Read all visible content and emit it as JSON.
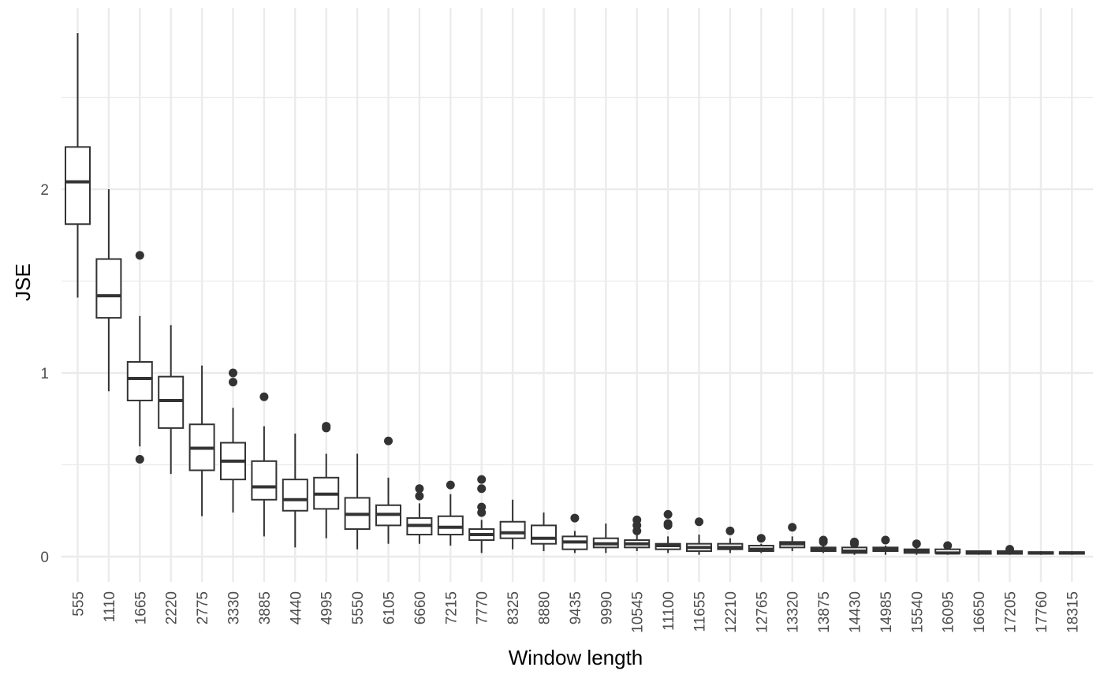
{
  "chart_data": {
    "type": "boxplot",
    "xlabel": "Window length",
    "ylabel": "JSE",
    "ylim": [
      -0.14,
      2.9
    ],
    "y_ticks": [
      0,
      1,
      2
    ],
    "grid": true,
    "theme": "minimal",
    "box_color": "#333333",
    "grid_color": "#ebebeb",
    "categories": [
      "555",
      "1110",
      "1665",
      "2220",
      "2775",
      "3330",
      "3885",
      "4440",
      "4995",
      "5550",
      "6105",
      "6660",
      "7215",
      "7770",
      "8325",
      "8880",
      "9435",
      "9990",
      "10545",
      "11100",
      "11655",
      "12210",
      "12765",
      "13320",
      "13875",
      "14430",
      "14985",
      "15540",
      "16095",
      "16650",
      "17205",
      "17760",
      "18315"
    ],
    "boxes": [
      {
        "whisker_low": 1.41,
        "q1": 1.81,
        "median": 2.04,
        "q3": 2.23,
        "whisker_high": 2.85,
        "outliers": []
      },
      {
        "whisker_low": 0.9,
        "q1": 1.3,
        "median": 1.42,
        "q3": 1.62,
        "whisker_high": 2.0,
        "outliers": []
      },
      {
        "whisker_low": 0.6,
        "q1": 0.85,
        "median": 0.97,
        "q3": 1.06,
        "whisker_high": 1.31,
        "outliers": [
          1.64,
          0.53
        ]
      },
      {
        "whisker_low": 0.45,
        "q1": 0.7,
        "median": 0.85,
        "q3": 0.98,
        "whisker_high": 1.26,
        "outliers": []
      },
      {
        "whisker_low": 0.22,
        "q1": 0.47,
        "median": 0.59,
        "q3": 0.72,
        "whisker_high": 1.04,
        "outliers": []
      },
      {
        "whisker_low": 0.24,
        "q1": 0.42,
        "median": 0.52,
        "q3": 0.62,
        "whisker_high": 0.81,
        "outliers": [
          1.0,
          0.95
        ]
      },
      {
        "whisker_low": 0.11,
        "q1": 0.31,
        "median": 0.38,
        "q3": 0.52,
        "whisker_high": 0.71,
        "outliers": [
          0.87
        ]
      },
      {
        "whisker_low": 0.05,
        "q1": 0.25,
        "median": 0.31,
        "q3": 0.42,
        "whisker_high": 0.67,
        "outliers": []
      },
      {
        "whisker_low": 0.1,
        "q1": 0.26,
        "median": 0.34,
        "q3": 0.43,
        "whisker_high": 0.56,
        "outliers": [
          0.71,
          0.7
        ]
      },
      {
        "whisker_low": 0.04,
        "q1": 0.15,
        "median": 0.23,
        "q3": 0.32,
        "whisker_high": 0.56,
        "outliers": []
      },
      {
        "whisker_low": 0.07,
        "q1": 0.17,
        "median": 0.23,
        "q3": 0.28,
        "whisker_high": 0.43,
        "outliers": [
          0.63
        ]
      },
      {
        "whisker_low": 0.07,
        "q1": 0.12,
        "median": 0.17,
        "q3": 0.21,
        "whisker_high": 0.29,
        "outliers": [
          0.37,
          0.33
        ]
      },
      {
        "whisker_low": 0.06,
        "q1": 0.12,
        "median": 0.16,
        "q3": 0.22,
        "whisker_high": 0.34,
        "outliers": [
          0.39
        ]
      },
      {
        "whisker_low": 0.02,
        "q1": 0.09,
        "median": 0.12,
        "q3": 0.15,
        "whisker_high": 0.2,
        "outliers": [
          0.42,
          0.37,
          0.27,
          0.24
        ]
      },
      {
        "whisker_low": 0.04,
        "q1": 0.1,
        "median": 0.13,
        "q3": 0.19,
        "whisker_high": 0.31,
        "outliers": []
      },
      {
        "whisker_low": 0.03,
        "q1": 0.07,
        "median": 0.1,
        "q3": 0.17,
        "whisker_high": 0.24,
        "outliers": []
      },
      {
        "whisker_low": 0.02,
        "q1": 0.04,
        "median": 0.08,
        "q3": 0.11,
        "whisker_high": 0.14,
        "outliers": [
          0.21
        ]
      },
      {
        "whisker_low": 0.02,
        "q1": 0.05,
        "median": 0.07,
        "q3": 0.1,
        "whisker_high": 0.18,
        "outliers": []
      },
      {
        "whisker_low": 0.03,
        "q1": 0.05,
        "median": 0.07,
        "q3": 0.09,
        "whisker_high": 0.12,
        "outliers": [
          0.2,
          0.17,
          0.14
        ]
      },
      {
        "whisker_low": 0.02,
        "q1": 0.04,
        "median": 0.06,
        "q3": 0.07,
        "whisker_high": 0.11,
        "outliers": [
          0.23,
          0.18,
          0.17
        ]
      },
      {
        "whisker_low": 0.01,
        "q1": 0.03,
        "median": 0.05,
        "q3": 0.07,
        "whisker_high": 0.12,
        "outliers": [
          0.19
        ]
      },
      {
        "whisker_low": 0.02,
        "q1": 0.04,
        "median": 0.05,
        "q3": 0.07,
        "whisker_high": 0.1,
        "outliers": [
          0.14
        ]
      },
      {
        "whisker_low": 0.02,
        "q1": 0.03,
        "median": 0.04,
        "q3": 0.06,
        "whisker_high": 0.07,
        "outliers": [
          0.1
        ]
      },
      {
        "whisker_low": 0.03,
        "q1": 0.05,
        "median": 0.07,
        "q3": 0.08,
        "whisker_high": 0.11,
        "outliers": [
          0.16
        ]
      },
      {
        "whisker_low": 0.02,
        "q1": 0.03,
        "median": 0.04,
        "q3": 0.05,
        "whisker_high": 0.07,
        "outliers": [
          0.09,
          0.08
        ]
      },
      {
        "whisker_low": 0.01,
        "q1": 0.02,
        "median": 0.03,
        "q3": 0.05,
        "whisker_high": 0.06,
        "outliers": [
          0.08,
          0.07
        ]
      },
      {
        "whisker_low": 0.01,
        "q1": 0.03,
        "median": 0.04,
        "q3": 0.05,
        "whisker_high": 0.06,
        "outliers": [
          0.09
        ]
      },
      {
        "whisker_low": 0.01,
        "q1": 0.02,
        "median": 0.03,
        "q3": 0.04,
        "whisker_high": 0.05,
        "outliers": [
          0.07
        ]
      },
      {
        "whisker_low": 0.01,
        "q1": 0.02,
        "median": 0.02,
        "q3": 0.04,
        "whisker_high": 0.05,
        "outliers": [
          0.06
        ]
      },
      {
        "whisker_low": 0.01,
        "q1": 0.015,
        "median": 0.02,
        "q3": 0.03,
        "whisker_high": 0.03,
        "outliers": []
      },
      {
        "whisker_low": 0.01,
        "q1": 0.015,
        "median": 0.02,
        "q3": 0.03,
        "whisker_high": 0.03,
        "outliers": [
          0.04
        ]
      },
      {
        "whisker_low": 0.01,
        "q1": 0.015,
        "median": 0.02,
        "q3": 0.025,
        "whisker_high": 0.03,
        "outliers": []
      },
      {
        "whisker_low": 0.01,
        "q1": 0.015,
        "median": 0.02,
        "q3": 0.025,
        "whisker_high": 0.03,
        "outliers": []
      }
    ]
  }
}
